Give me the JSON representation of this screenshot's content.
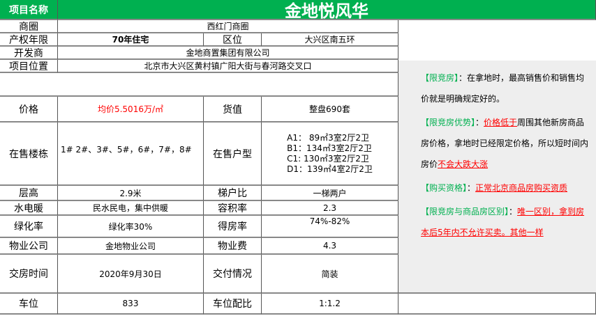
{
  "header": {
    "label": "项目名称",
    "title": "金地悦风华"
  },
  "rows": {
    "district": {
      "label": "商圈",
      "value": "西红门商圈"
    },
    "tenure": {
      "label": "产权年限",
      "value": "70年住宅"
    },
    "location_zone": {
      "label": "区位",
      "value": "大兴区南五环"
    },
    "developer": {
      "label": "开发商",
      "value": "金地商置集团有限公司"
    },
    "address": {
      "label": "项目位置",
      "value": "北京市大兴区黄村镇广阳大街与春河路交叉口"
    },
    "price": {
      "label": "价格",
      "value": "均价5.5016万/㎡"
    },
    "stock": {
      "label": "货值",
      "value": "整盘690套"
    },
    "buildings": {
      "label": "在售楼栋",
      "value": "1# 2#、3#、5#，6#，7#，8#"
    },
    "unit_types": {
      "label": "在售户型",
      "values": [
        "A1：  89㎡3室2厅2卫",
        "B1：134㎡3室2厅2卫",
        "C1:  130㎡3室2厅2卫",
        "D1：139㎡4室2厅2卫"
      ]
    },
    "floor_height": {
      "label": "层高",
      "value": "2.9米"
    },
    "elevator": {
      "label": "梯户比",
      "value": "一梯两户"
    },
    "utilities": {
      "label": "水电暖",
      "value": "民水民电，集中供暖"
    },
    "far": {
      "label": "容积率",
      "value": "2.3"
    },
    "green": {
      "label": "绿化率",
      "value": "绿化率30%"
    },
    "efficiency": {
      "label": "得房率",
      "value": "74%-82%"
    },
    "property_co": {
      "label": "物业公司",
      "value": "金地物业公司"
    },
    "property_fee": {
      "label": "物业费",
      "value": "4.3"
    },
    "delivery_date": {
      "label": "交房时间",
      "value": "2020年9月30日"
    },
    "delivery_std": {
      "label": "交付情况",
      "value": "简装"
    },
    "parking": {
      "label": "车位",
      "value": "833"
    },
    "parking_ratio": {
      "label": "车位配比",
      "value": "1:1.2"
    }
  },
  "notes": {
    "n1_title": "【限竞房】",
    "n1_text": "：在拿地时，最高销售价和销售均价就是明确规定好的。",
    "n2_title": "【限竞房优势】",
    "n2_sep": "：",
    "n2_red": "价格低于",
    "n2_text": "周围其他新房商品房价格，拿地时已经限定价格，所以短时间内房价",
    "n2_red2": "不会大跌大涨",
    "n3_title": "【购买资格】",
    "n3_sep": "：",
    "n3_red": "正常北京商品房购买资质",
    "n4_title": "【限竞房与商品房区别】",
    "n4_sep": "：",
    "n4_red": "唯一区别，拿到房本后5年内不允许买卖。其他一样"
  },
  "colors": {
    "header_green": "#00b050",
    "highlight_red": "#ff0000",
    "panel_gray": "#eeeeee"
  }
}
